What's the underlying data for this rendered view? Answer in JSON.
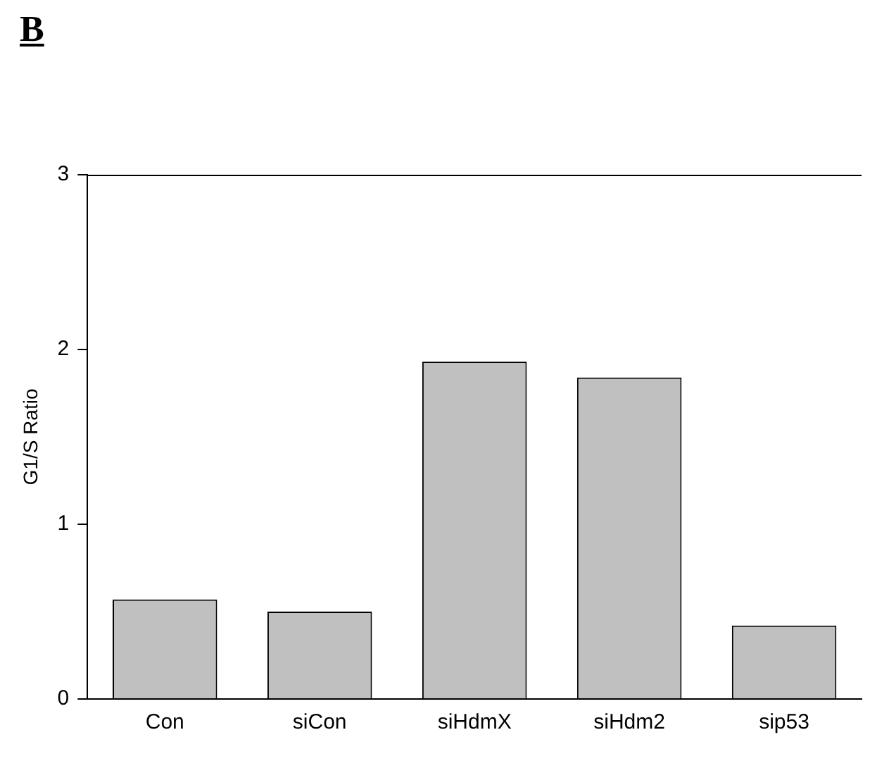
{
  "chart_data": {
    "type": "bar",
    "title": "B",
    "ylabel": "G1/S Ratio",
    "categories": [
      "Con",
      "siCon",
      "siHdmX",
      "siHdm2",
      "sip53"
    ],
    "values": [
      0.57,
      0.5,
      1.93,
      1.84,
      0.42
    ],
    "color": "#c0c0c0",
    "ylim": [
      0,
      3
    ],
    "yticks": [
      0,
      1,
      2,
      3
    ],
    "grid": false,
    "legend": false
  }
}
